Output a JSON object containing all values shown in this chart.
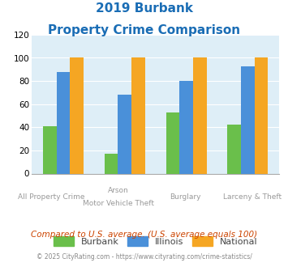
{
  "title_line1": "2019 Burbank",
  "title_line2": "Property Crime Comparison",
  "title_color": "#1a6db5",
  "cat_labels_row1": [
    "All Property Crime",
    "Arson",
    "Burglary",
    "Larceny & Theft"
  ],
  "cat_labels_row2": [
    "",
    "Motor Vehicle Theft",
    "",
    ""
  ],
  "burbank": [
    41,
    17,
    53,
    42
  ],
  "illinois": [
    88,
    68,
    80,
    93
  ],
  "national": [
    100,
    100,
    100,
    100
  ],
  "burbank_color": "#6abf4b",
  "illinois_color": "#4a90d9",
  "national_color": "#f5a623",
  "ylim": [
    0,
    120
  ],
  "yticks": [
    0,
    20,
    40,
    60,
    80,
    100,
    120
  ],
  "background_color": "#deeef7",
  "footnote": "Compared to U.S. average. (U.S. average equals 100)",
  "footnote_color": "#cc4400",
  "copyright": "© 2025 CityRating.com - https://www.cityrating.com/crime-statistics/",
  "copyright_color": "#888888",
  "legend_labels": [
    "Burbank",
    "Illinois",
    "National"
  ]
}
